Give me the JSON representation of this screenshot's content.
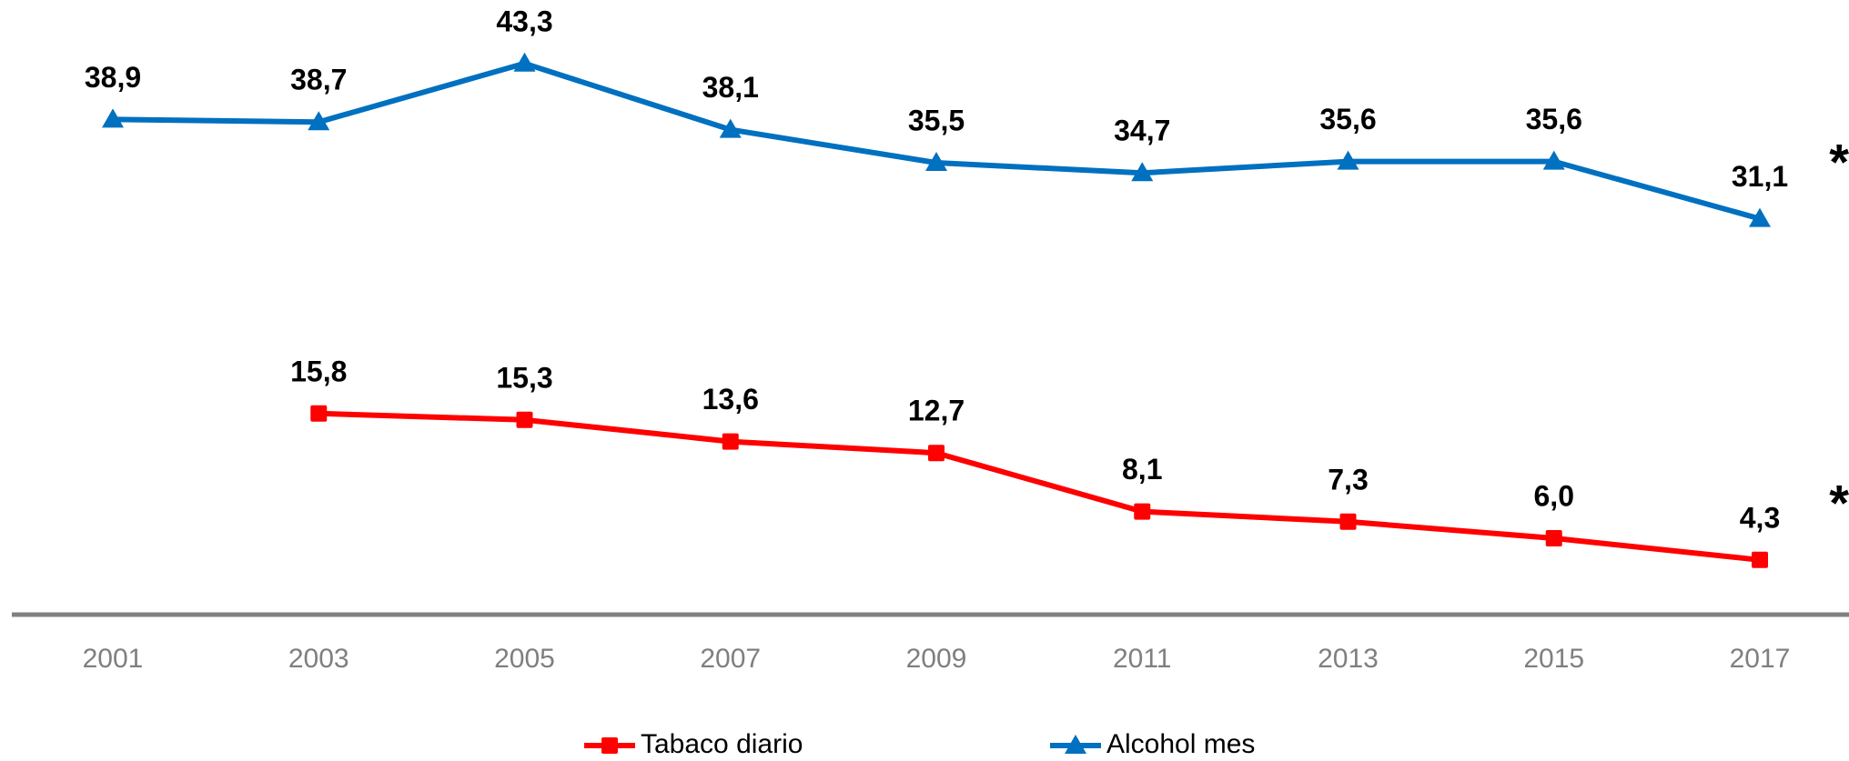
{
  "chart_data": {
    "type": "line",
    "categories": [
      "2001",
      "2003",
      "2005",
      "2007",
      "2009",
      "2011",
      "2013",
      "2015",
      "2017"
    ],
    "series": [
      {
        "name": "Tabaco diario",
        "color": "#ff0000",
        "marker": "square",
        "values": [
          null,
          15.8,
          15.3,
          13.6,
          12.7,
          8.1,
          7.3,
          6.0,
          4.3
        ],
        "value_labels": [
          null,
          "15,8",
          "15,3",
          "13,6",
          "12,7",
          "8,1",
          "7,3",
          "6,0",
          "4,3"
        ]
      },
      {
        "name": "Alcohol mes",
        "color": "#0070c0",
        "marker": "triangle",
        "values": [
          38.9,
          38.7,
          43.3,
          38.1,
          35.5,
          34.7,
          35.6,
          35.6,
          31.1
        ],
        "value_labels": [
          "38,9",
          "38,7",
          "43,3",
          "38,1",
          "35,5",
          "34,7",
          "35,6",
          "35,6",
          "31,1"
        ]
      }
    ],
    "annotations": [
      "*",
      "*"
    ],
    "ylim": [
      0,
      48
    ],
    "grid": false,
    "legend": "bottom"
  }
}
